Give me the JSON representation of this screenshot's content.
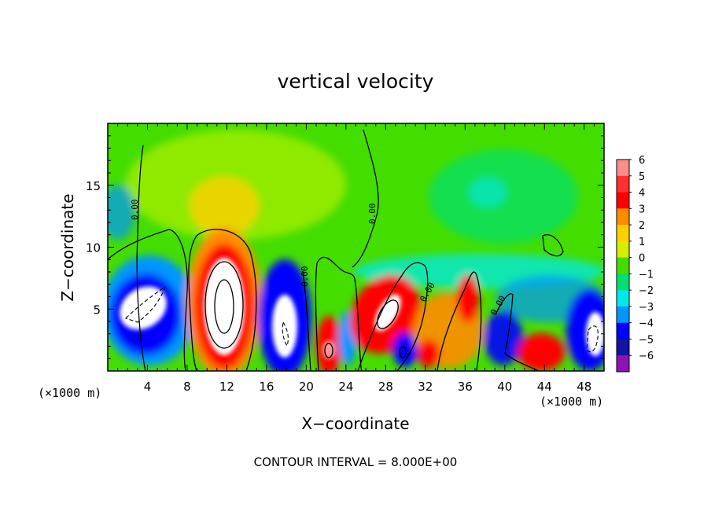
{
  "chart_data": {
    "type": "heatmap",
    "title": "vertical velocity",
    "xlabel": "X−coordinate",
    "ylabel": "Z−coordinate",
    "x_unit": "(×1000 m)",
    "x_unit_right": "(×1000 m)",
    "xlim": [
      0,
      50
    ],
    "ylim": [
      0,
      20
    ],
    "x_ticks": [
      4,
      8,
      12,
      16,
      20,
      24,
      28,
      32,
      36,
      40,
      44,
      48
    ],
    "y_ticks": [
      5,
      10,
      15
    ],
    "colorbar": {
      "levels": [
        6,
        5,
        4,
        3,
        2,
        1,
        0,
        -1,
        -2,
        -3,
        -4,
        -5,
        -6
      ],
      "labels": [
        "6",
        "5",
        "4",
        "3",
        "2",
        "1",
        "0",
        "−1",
        "−2",
        "−3",
        "−4",
        "−5",
        "−6"
      ],
      "colors": [
        "#ff8c8c",
        "#ff3030",
        "#ff0000",
        "#ff8c00",
        "#ffd000",
        "#d2f000",
        "#44dd00",
        "#00e070",
        "#00e8e8",
        "#0096ff",
        "#0000ff",
        "#1414a0",
        "#8c14b4"
      ]
    },
    "contour_lines": {
      "interval": 8.0,
      "labels": [
        "0.00",
        "0.00",
        "0.00",
        "0.00",
        "0.00"
      ]
    },
    "footer": "CONTOUR INTERVAL = 8.000E+00"
  }
}
